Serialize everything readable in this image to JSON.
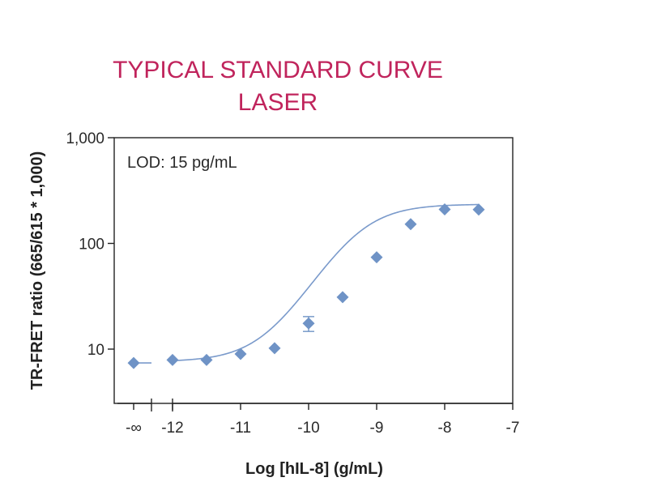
{
  "chart_data": {
    "type": "scatter",
    "title": "TYPICAL STANDARD CURVE",
    "subtitle": "LASER",
    "xlabel": "Log [hIL-8] (g/mL)",
    "ylabel": "TR-FRET ratio (665/615 * 1,000)",
    "annotation": "LOD: 15 pg/mL",
    "y_scale": "log",
    "ylim": [
      3,
      1000
    ],
    "xlim": [
      -12.6,
      -7
    ],
    "y_ticks": [
      {
        "value": 10,
        "label": "10"
      },
      {
        "value": 100,
        "label": "100"
      },
      {
        "value": 1000,
        "label": "1,000"
      }
    ],
    "x_ticks": [
      {
        "value": "-∞",
        "label": "-∞"
      },
      {
        "value": -12,
        "label": "-12"
      },
      {
        "value": -11,
        "label": "-11"
      },
      {
        "value": -10,
        "label": "-10"
      },
      {
        "value": -9,
        "label": "-9"
      },
      {
        "value": -8,
        "label": "-8"
      },
      {
        "value": -7,
        "label": "-7"
      }
    ],
    "axis_break": true,
    "grid": false,
    "colors": {
      "marker": "#6f93c6",
      "curve": "#7a9acb",
      "title": "#c0245c",
      "axis": "#222222"
    },
    "marker": "diamond",
    "zero_point": {
      "x": "-∞",
      "y": 7.4
    },
    "series": [
      {
        "x": [
          -12,
          -11.5,
          -11,
          -10.5,
          -10,
          -9.5,
          -9,
          -8.5,
          -8,
          -7.5
        ],
        "y": [
          7.9,
          7.9,
          9.0,
          10.2,
          17.5,
          31,
          74,
          152,
          210,
          209
        ],
        "error": [
          0,
          0,
          0,
          0,
          2.8,
          0,
          0,
          0,
          0,
          0
        ]
      }
    ],
    "fit": {
      "type": "4PL",
      "bottom": 7.6,
      "top": 235,
      "log_ec50": -9.3,
      "hill": 1.15
    }
  }
}
